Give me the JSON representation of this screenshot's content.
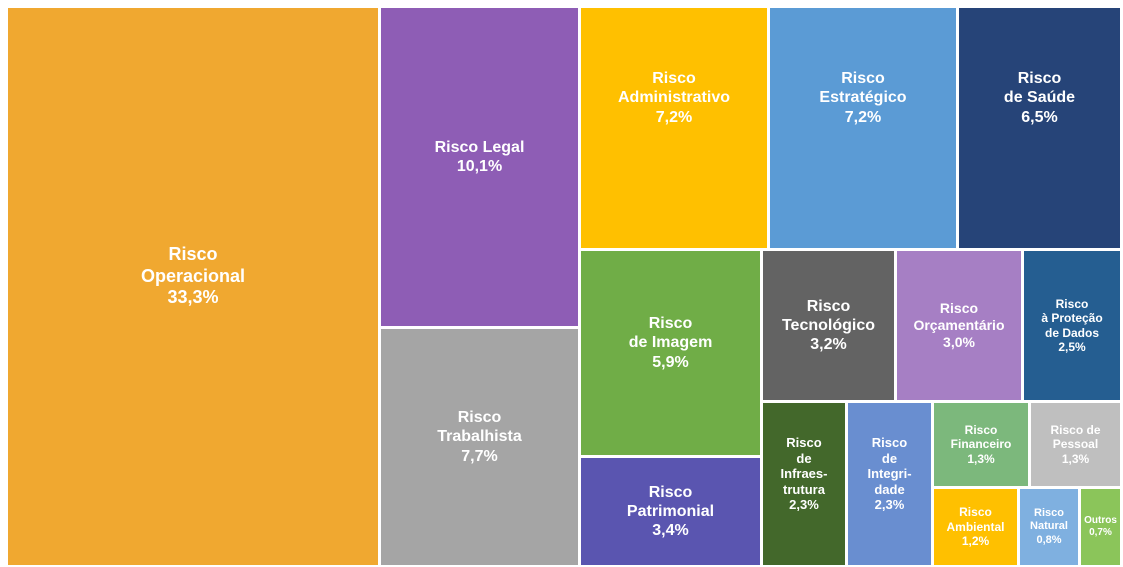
{
  "chart_data": {
    "type": "treemap",
    "categories": [
      "Risco\nOperacional",
      "Risco Legal",
      "Risco\nTrabalhista",
      "Risco\nAdministrativo",
      "Risco\nEstratégico",
      "Risco\nde Saúde",
      "Risco\nde Imagem",
      "Risco\nPatrimonial",
      "Risco\nTecnológico",
      "Risco\nOrçamentário",
      "Risco\nà Proteção\nde Dados",
      "Risco\nde\nInfraes-\ntrutura",
      "Risco\nde\nIntegri-\ndade",
      "Risco\nFinanceiro",
      "Risco de\nPessoal",
      "Risco\nAmbiental",
      "Risco\nNatural",
      "Outros"
    ],
    "values": [
      33.3,
      10.1,
      7.7,
      7.2,
      7.2,
      6.5,
      5.9,
      3.4,
      3.2,
      3.0,
      2.5,
      2.3,
      2.3,
      1.3,
      1.3,
      1.2,
      0.8,
      0.7
    ],
    "value_labels": [
      "33,3%",
      "10,1%",
      "7,7%",
      "7,2%",
      "7,2%",
      "6,5%",
      "5,9%",
      "3,4%",
      "3,2%",
      "3,0%",
      "2,5%",
      "2,3%",
      "2,3%",
      "1,3%",
      "1,3%",
      "1,2%",
      "0,8%",
      "0,7%"
    ],
    "colors": [
      "#f0a830",
      "#8e5db5",
      "#a5a5a5",
      "#ffc000",
      "#5b9bd5",
      "#264478",
      "#70ad47",
      "#5a55b0",
      "#636363",
      "#a67fc4",
      "#255e91",
      "#43682b",
      "#698ed0",
      "#7cb87c",
      "#bfbfbf",
      "#ffc000",
      "#7fb0e0",
      "#8bc55a"
    ]
  }
}
